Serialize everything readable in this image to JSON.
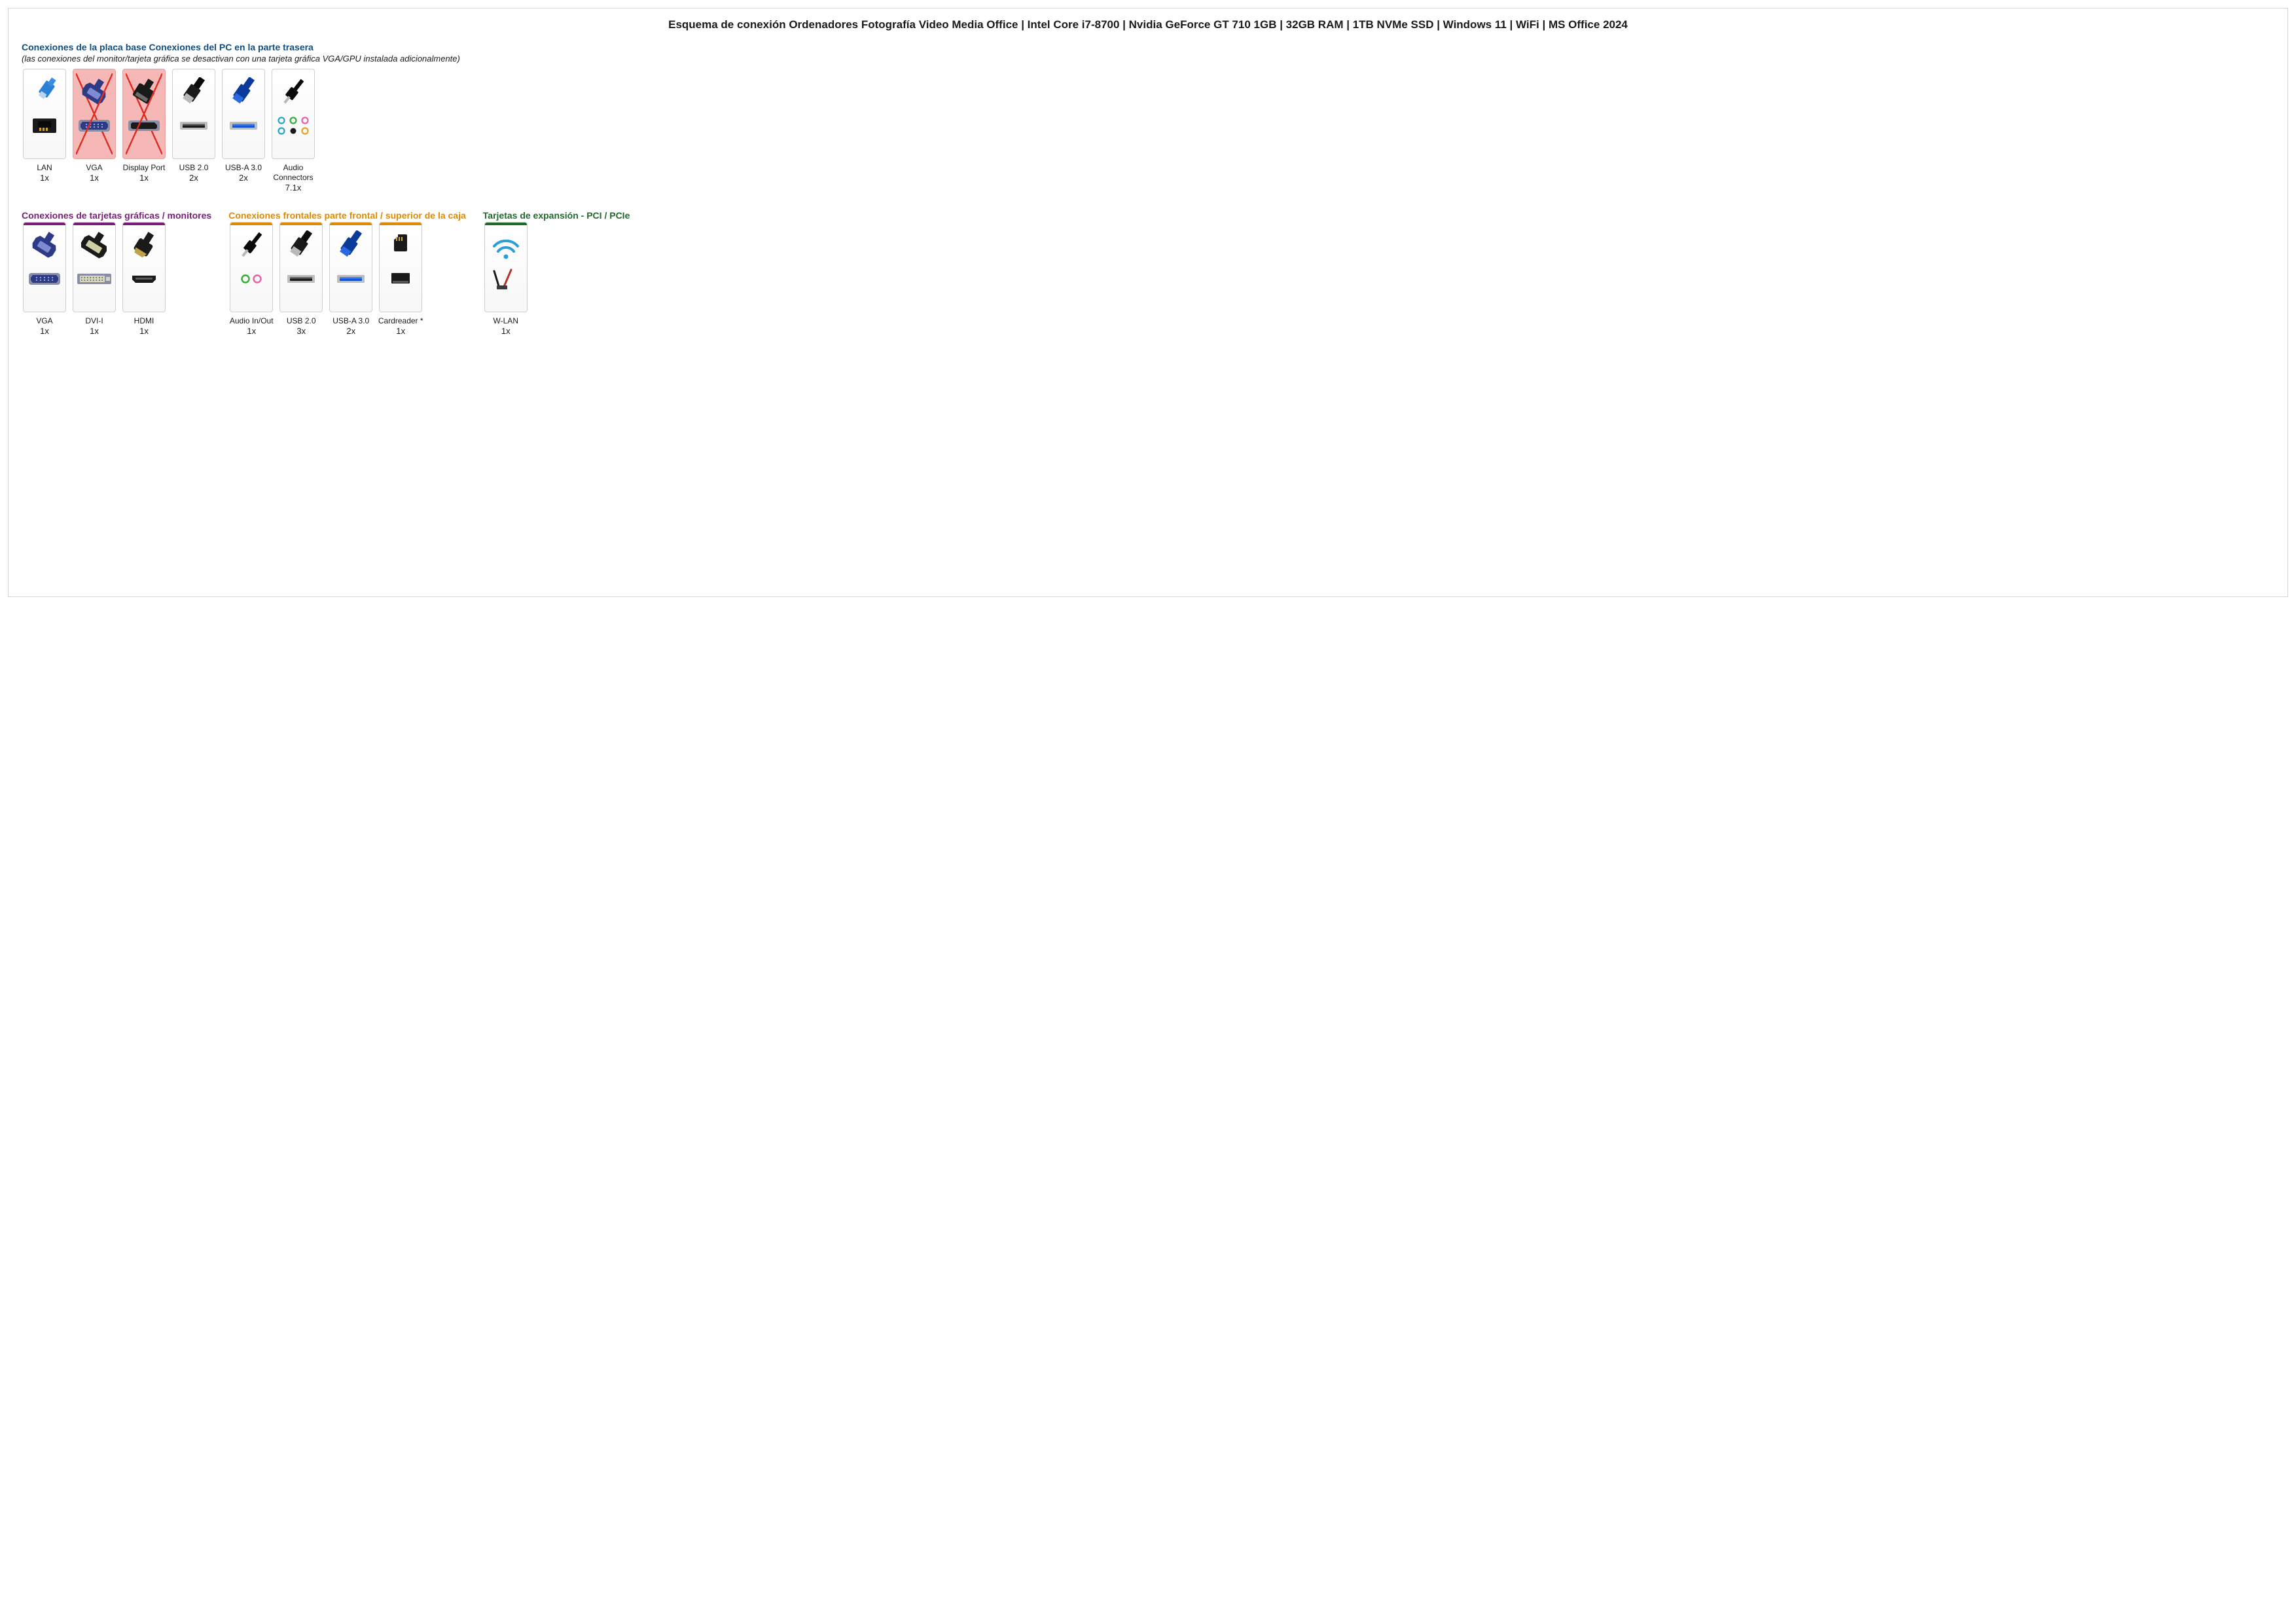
{
  "title": "Esquema de conexión Ordenadores Fotografía Video Media Office | Intel Core i7-8700 | Nvidia GeForce GT 710 1GB | 32GB RAM | 1TB NVMe SSD | Windows 11 | WiFi | MS Office 2024",
  "colors": {
    "blue_header": "#134d80",
    "purple_header": "#7a1d7a",
    "orange_header": "#e08a00",
    "green_header": "#1e6a2a",
    "card_border": "#cfcfcf",
    "disabled_fill": "#f6b8b6",
    "disabled_x": "#e02b20"
  },
  "sections": {
    "motherboard": {
      "heading": "Conexiones de la placa base Conexiones del PC en la parte trasera",
      "subtitle": "(las conexiones del monitor/tarjeta gráfica se desactivan con una tarjeta gráfica VGA/GPU instalada adicionalmente)",
      "color": "#134d80",
      "items": [
        {
          "icon": "lan",
          "label": "LAN",
          "count": "1x",
          "disabled": false
        },
        {
          "icon": "vga",
          "label": "VGA",
          "count": "1x",
          "disabled": true
        },
        {
          "icon": "displayport",
          "label": "Display Port",
          "count": "1x",
          "disabled": true
        },
        {
          "icon": "usb2",
          "label": "USB 2.0",
          "count": "2x",
          "disabled": false
        },
        {
          "icon": "usb3",
          "label": "USB-A 3.0",
          "count": "2x",
          "disabled": false
        },
        {
          "icon": "audio71",
          "label": "Audio Connectors",
          "count": "7.1x",
          "disabled": false
        }
      ]
    },
    "gpu": {
      "heading": "Conexiones de tarjetas gráficas / monitores",
      "color": "#7a1d7a",
      "items": [
        {
          "icon": "vga",
          "label": "VGA",
          "count": "1x"
        },
        {
          "icon": "dvi",
          "label": "DVI-I",
          "count": "1x"
        },
        {
          "icon": "hdmi",
          "label": "HDMI",
          "count": "1x"
        }
      ]
    },
    "front": {
      "heading": "Conexiones frontales parte frontal / superior de la caja",
      "color": "#e08a00",
      "items": [
        {
          "icon": "audiojack",
          "label": "Audio In/Out",
          "count": "1x"
        },
        {
          "icon": "usb2",
          "label": "USB 2.0",
          "count": "3x"
        },
        {
          "icon": "usb3",
          "label": "USB-A 3.0",
          "count": "2x"
        },
        {
          "icon": "cardreader",
          "label": "Cardreader *",
          "count": "1x"
        }
      ]
    },
    "expansion": {
      "heading": "Tarjetas de expansión - PCI / PCIe",
      "color": "#1e6a2a",
      "items": [
        {
          "icon": "wlan",
          "label": "W-LAN",
          "count": "1x"
        }
      ]
    }
  }
}
